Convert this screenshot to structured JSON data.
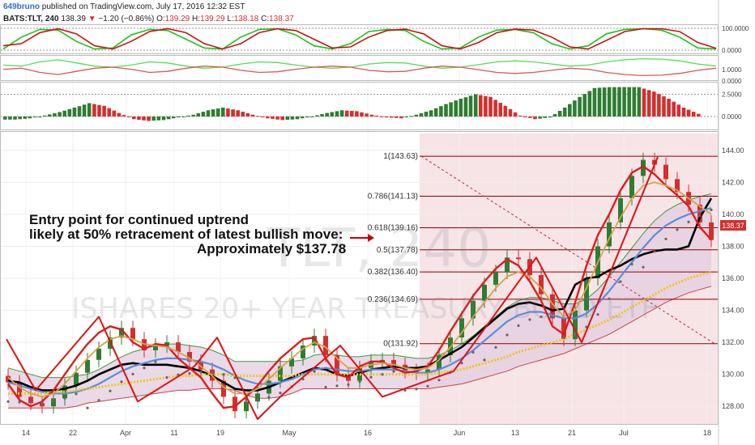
{
  "header": {
    "author": "649bruno",
    "published": "published on TradingView.com, July 17, 2016 12:32 EST",
    "symbol": "BATS:TLT, 240",
    "last": "138.39",
    "down_arrow": "▼",
    "change": "−1.20 (−0.86%)",
    "o_label": "O:",
    "o": "139.29",
    "h_label": "H:",
    "h": "139.29",
    "l_label": "L:",
    "l": "138.18",
    "c_label": "C:",
    "c": "138.37"
  },
  "watermark": {
    "symbol": "TLT, 240",
    "name": "ISHARES 20+ YEAR TREASURY BOND ETF"
  },
  "annotation": {
    "line1": "Entry point for continued uptrend",
    "line2": "likely at 50% retracement of latest bullish move:",
    "line3": "Approximately $137.78"
  },
  "price_tag": "138.37",
  "colors": {
    "up": "#2e7d32",
    "down": "#d32f2f",
    "fib": "#8b0000",
    "fib_zone": "#f5e0e3",
    "ema_fast": "#000000",
    "ema_mid": "#5b8dd6",
    "ema_slow": "#f2c418",
    "cloud": "#e3cde0"
  },
  "chart_data": [
    {
      "type": "line",
      "panel": "oscillator-1",
      "y_ticks": [
        "100.0000",
        "0.0000"
      ],
      "ylim": [
        0,
        100
      ],
      "series": [
        {
          "values": [
            5,
            60,
            95,
            92,
            40,
            5,
            10,
            70,
            95,
            90,
            50,
            10,
            5,
            60,
            95,
            98,
            70,
            20,
            5,
            30,
            85,
            95,
            90,
            40,
            5,
            10,
            60,
            92,
            95,
            80,
            30,
            5,
            20,
            75,
            95,
            98,
            92,
            60,
            10,
            5
          ]
        },
        {
          "values": [
            20,
            30,
            80,
            98,
            75,
            20,
            5,
            40,
            85,
            98,
            80,
            30,
            5,
            30,
            80,
            98,
            90,
            50,
            10,
            15,
            60,
            90,
            96,
            75,
            20,
            5,
            35,
            80,
            96,
            92,
            60,
            15,
            5,
            45,
            85,
            98,
            98,
            85,
            35,
            8
          ]
        }
      ]
    },
    {
      "type": "line",
      "panel": "oscillator-2",
      "y_ticks": [
        "1.0000",
        "0.0000"
      ],
      "ylim": [
        0,
        1
      ],
      "series": [
        {
          "values": [
            0.6,
            0.55,
            0.75,
            0.85,
            0.7,
            0.55,
            0.5,
            0.6,
            0.75,
            0.7,
            0.55,
            0.45,
            0.5,
            0.65,
            0.75,
            0.72,
            0.6,
            0.5,
            0.45,
            0.5,
            0.65,
            0.72,
            0.7,
            0.55,
            0.45,
            0.5,
            0.62,
            0.75,
            0.8,
            0.75,
            0.65,
            0.55,
            0.6,
            0.75,
            0.85,
            0.9,
            0.88,
            0.8,
            0.65,
            0.55
          ]
        },
        {
          "values": [
            0.4,
            0.45,
            0.25,
            0.15,
            0.3,
            0.45,
            0.5,
            0.4,
            0.25,
            0.3,
            0.45,
            0.55,
            0.5,
            0.35,
            0.25,
            0.28,
            0.4,
            0.5,
            0.55,
            0.5,
            0.35,
            0.28,
            0.3,
            0.45,
            0.55,
            0.5,
            0.38,
            0.25,
            0.2,
            0.25,
            0.35,
            0.45,
            0.4,
            0.25,
            0.15,
            0.1,
            0.12,
            0.2,
            0.35,
            0.45
          ]
        }
      ]
    },
    {
      "type": "bar",
      "panel": "histogram",
      "y_ticks": [
        "2.5000",
        "0.0000"
      ],
      "ylim": [
        -0.5,
        3.5
      ],
      "values": [
        -0.35,
        -0.2,
        0.1,
        0.5,
        1.0,
        1.5,
        1.2,
        0.4,
        -0.3,
        -0.5,
        -0.4,
        -0.1,
        0.2,
        0.7,
        1.0,
        0.7,
        0.2,
        -0.2,
        -0.4,
        -0.3,
        0.0,
        0.4,
        0.7,
        0.6,
        0.2,
        -0.1,
        -0.2,
        0.2,
        0.7,
        1.4,
        2.0,
        2.5,
        2.2,
        1.2,
        0.1,
        -0.3,
        -0.1,
        1.0,
        2.2,
        3.2,
        3.3,
        3.3,
        3.3,
        2.8,
        2.0,
        1.0,
        0.3
      ]
    },
    {
      "type": "line",
      "panel": "price",
      "y_ticks": [
        "144.00",
        "142.00",
        "140.00",
        "138.00",
        "136.00",
        "134.00",
        "132.00",
        "130.00",
        "128.00"
      ],
      "ylim": [
        127,
        145
      ],
      "x_ticks": [
        "14",
        "22",
        "Apr",
        "11",
        "19",
        "May",
        "16",
        "Jun",
        "13",
        "21",
        "Jul",
        "18"
      ],
      "fib_levels": [
        {
          "label": "1(143.63)",
          "value": 143.63
        },
        {
          "label": "0.786(141.13)",
          "value": 141.13
        },
        {
          "label": "0.618(139.16)",
          "value": 139.16
        },
        {
          "label": "0.5(137.78)",
          "value": 137.78
        },
        {
          "label": "0.382(136.40)",
          "value": 136.4
        },
        {
          "label": "0.236(134.69)",
          "value": 134.69
        },
        {
          "label": "0(131.92)",
          "value": 131.92
        }
      ],
      "close": [
        129.5,
        128.6,
        128.2,
        128.0,
        128.5,
        129.3,
        130.1,
        130.9,
        131.6,
        132.3,
        132.9,
        132.2,
        131.5,
        131.8,
        132.0,
        131.4,
        130.8,
        130.3,
        129.6,
        128.6,
        127.7,
        128.3,
        128.8,
        129.6,
        130.5,
        131.0,
        131.8,
        132.4,
        131.2,
        130.0,
        129.6,
        130.4,
        130.8,
        130.9,
        130.6,
        130.2,
        130.1,
        130.3,
        131.2,
        132.3,
        133.5,
        134.6,
        135.6,
        136.4,
        137.3,
        137.2,
        136.2,
        135.0,
        133.5,
        132.2,
        134.0,
        136.0,
        138.0,
        139.5,
        141.0,
        142.4,
        143.4,
        143.1,
        142.2,
        141.4,
        140.6,
        139.5,
        138.4
      ],
      "series": [
        {
          "values": [
            129.6,
            129.5,
            129.2,
            129.0,
            129.0,
            129.1,
            129.3,
            129.6,
            130.0,
            130.3,
            130.6,
            130.7,
            130.6,
            130.6,
            130.6,
            130.5,
            130.4,
            130.2,
            129.9,
            129.5,
            129.1,
            129.0,
            129.0,
            129.2,
            129.5,
            129.8,
            130.1,
            130.4,
            130.3,
            130.0,
            129.9,
            130.1,
            130.3,
            130.4,
            130.5,
            130.4,
            130.4,
            130.5,
            130.9,
            131.3,
            131.7,
            132.3,
            132.9,
            133.5,
            134.1,
            134.4,
            134.5,
            134.3,
            134.0,
            134.1,
            135.6,
            136.0,
            136.1,
            136.5,
            136.8,
            137.2,
            137.5,
            137.7,
            137.8,
            137.8,
            138.0,
            139.8,
            141.0
          ]
        },
        {
          "values": [
            129.5,
            129.3,
            129.1,
            128.9,
            128.8,
            128.8,
            128.9,
            129.1,
            129.4,
            129.8,
            130.2,
            130.5,
            130.7,
            130.9,
            131.0,
            131.0,
            130.9,
            130.8,
            130.6,
            130.3,
            129.9,
            129.6,
            129.4,
            129.4,
            129.5,
            129.7,
            130.0,
            130.3,
            130.4,
            130.3,
            130.2,
            130.2,
            130.3,
            130.3,
            130.3,
            130.2,
            130.1,
            130.1,
            130.3,
            130.6,
            131.0,
            131.5,
            132.1,
            132.7,
            133.3,
            133.7,
            133.9,
            133.9,
            133.7,
            133.5,
            133.5,
            133.8,
            134.4,
            135.2,
            136.1,
            137.0,
            137.9,
            138.7,
            139.3,
            139.7,
            140.0,
            140.2,
            140.4
          ]
        },
        {
          "values": [
            128.8,
            128.8,
            128.8,
            128.8,
            128.9,
            128.9,
            129.0,
            129.1,
            129.2,
            129.3,
            129.4,
            129.5,
            129.6,
            129.7,
            129.8,
            129.9,
            129.9,
            130.0,
            130.0,
            130.0,
            129.9,
            129.9,
            129.9,
            129.9,
            129.9,
            129.9,
            130.0,
            130.0,
            130.0,
            130.0,
            130.0,
            130.0,
            130.0,
            130.0,
            130.0,
            130.0,
            130.0,
            130.0,
            130.1,
            130.2,
            130.3,
            130.5,
            130.7,
            130.9,
            131.1,
            131.4,
            131.6,
            131.8,
            132.0,
            132.2,
            132.5,
            132.8,
            133.1,
            133.4,
            133.8,
            134.2,
            134.6,
            135.0,
            135.4,
            135.7,
            136.0,
            136.2,
            136.4
          ]
        },
        {
          "values": [
            129.4,
            128.4,
            128.0,
            128.3,
            129.0,
            130.0,
            131.0,
            131.9,
            132.6,
            133.0,
            132.8,
            132.0,
            131.6,
            131.9,
            131.8,
            131.0,
            130.4,
            129.8,
            128.8,
            127.9,
            128.0,
            128.6,
            129.3,
            130.2,
            131.0,
            131.6,
            132.2,
            132.3,
            131.0,
            130.0,
            129.8,
            130.5,
            130.8,
            130.8,
            130.4,
            130.1,
            130.2,
            130.5,
            131.5,
            132.7,
            133.8,
            134.9,
            135.8,
            136.6,
            137.2,
            136.8,
            135.8,
            134.6,
            133.0,
            132.5,
            134.5,
            136.8,
            138.7,
            140.0,
            141.5,
            142.6,
            143.0,
            142.5,
            141.8,
            141.2,
            140.5,
            139.2,
            138.4
          ]
        },
        {
          "values": [
            129.8,
            129.2,
            128.8,
            128.6,
            128.8,
            129.4,
            130.2,
            131.0,
            131.7,
            132.2,
            132.4,
            132.2,
            131.9,
            131.8,
            131.7,
            131.4,
            131.0,
            130.5,
            129.9,
            129.2,
            128.8,
            128.8,
            129.1,
            129.7,
            130.4,
            131.0,
            131.6,
            132.0,
            131.7,
            131.0,
            130.4,
            130.4,
            130.6,
            130.7,
            130.6,
            130.4,
            130.3,
            130.4,
            130.9,
            131.7,
            132.6,
            133.6,
            134.5,
            135.4,
            136.1,
            136.4,
            136.1,
            135.4,
            134.4,
            133.6,
            134.0,
            135.4,
            137.0,
            138.5,
            139.8,
            141.0,
            141.8,
            142.0,
            141.8,
            141.5,
            141.0,
            140.5,
            140.0
          ]
        }
      ]
    }
  ]
}
